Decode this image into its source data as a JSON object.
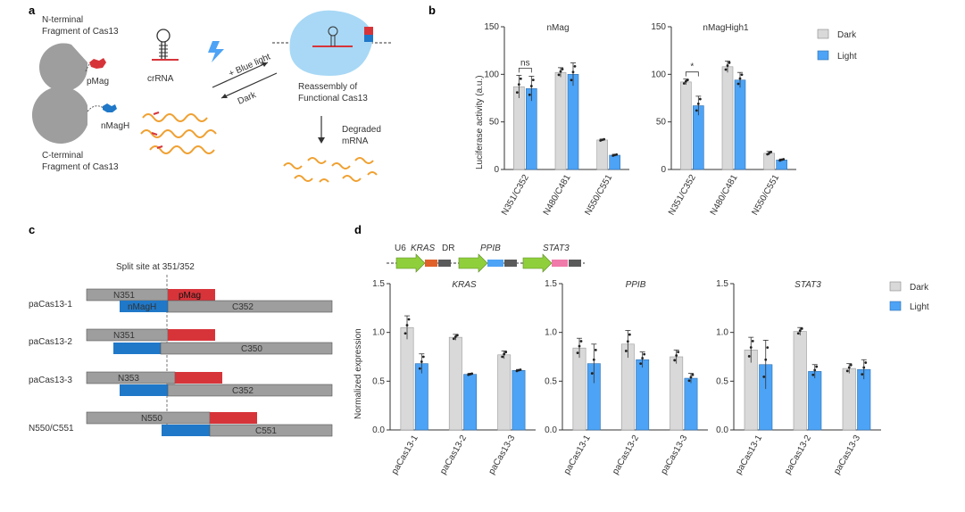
{
  "colors": {
    "dark": "#d9d9d9",
    "light": "#4da3f5",
    "red": "#d7343a",
    "blue": "#1f78c8",
    "grey": "#9e9e9e",
    "orange": "#f0a030",
    "green": "#8fcf3c",
    "pink": "#f07aa9",
    "cas": "#a8d8f5",
    "dkgrey": "#5a5a5a"
  },
  "panel_a": {
    "label": "a",
    "n_terminal_line1": "N-terminal",
    "n_terminal_line2": "Fragment of Cas13",
    "c_terminal_line1": "C-terminal",
    "c_terminal_line2": "Fragment of Cas13",
    "pmag": "pMag",
    "nmagh": "nMagH",
    "crrna": "crRNA",
    "blue_light": "+ Blue light",
    "dark": "Dark",
    "reassembly_line1": "Reassembly of",
    "reassembly_line2": "Functional Cas13",
    "degraded_line1": "Degraded",
    "degraded_line2": "mRNA"
  },
  "panel_b": {
    "label": "b",
    "legend": [
      "Dark",
      "Light"
    ],
    "ylabel": "Luciferase activity (a.u.)"
  },
  "panel_c": {
    "label": "c",
    "split_site": "Split site at 351/352",
    "constructs": [
      {
        "name": "paCas13-1",
        "n": "N351",
        "c": "C352",
        "n_tag": "pMag",
        "c_tag": "nMagH"
      },
      {
        "name": "paCas13-2",
        "n": "N351",
        "c": "C350",
        "n_tag": "",
        "c_tag": ""
      },
      {
        "name": "paCas13-3",
        "n": "N353",
        "c": "C352",
        "n_tag": "",
        "c_tag": ""
      },
      {
        "name": "N550/C551",
        "n": "N550",
        "c": "C551",
        "n_tag": "",
        "c_tag": ""
      }
    ]
  },
  "panel_d": {
    "label": "d",
    "u6": "U6",
    "kras": "KRAS",
    "dr": "DR",
    "ppib": "PPIB",
    "stat3": "STAT3",
    "legend": [
      "Dark",
      "Light"
    ],
    "ylabel": "Normalized expression"
  },
  "chart_data": [
    {
      "type": "bar",
      "title": "nMag",
      "categories": [
        "N351/C352",
        "N480/C481",
        "N550/C551"
      ],
      "series": [
        {
          "name": "Dark",
          "values": [
            87,
            102,
            31
          ]
        },
        {
          "name": "Light",
          "values": [
            85,
            100,
            15
          ]
        }
      ],
      "errors": [
        [
          12,
          5,
          1
        ],
        [
          13,
          12,
          1
        ]
      ],
      "ylim": [
        0,
        150
      ],
      "yticks": [
        "0",
        "50",
        "100",
        "150"
      ],
      "annotations": [
        "ns"
      ]
    },
    {
      "type": "bar",
      "title": "nMagHigh1",
      "categories": [
        "N351/C352",
        "N480/C481",
        "N550/C551"
      ],
      "series": [
        {
          "name": "Dark",
          "values": [
            92,
            108,
            17
          ]
        },
        {
          "name": "Light",
          "values": [
            67,
            94,
            10
          ]
        }
      ],
      "errors": [
        [
          3,
          6,
          2
        ],
        [
          10,
          8,
          1
        ]
      ],
      "ylim": [
        0,
        150
      ],
      "yticks": [
        "0",
        "50",
        "100",
        "150"
      ],
      "annotations": [
        "*"
      ]
    },
    {
      "type": "bar",
      "title": "KRAS",
      "categories": [
        "paCas13-1",
        "paCas13-2",
        "paCas13-3"
      ],
      "series": [
        {
          "name": "Dark",
          "values": [
            1.05,
            0.95,
            0.77
          ]
        },
        {
          "name": "Light",
          "values": [
            0.68,
            0.57,
            0.61
          ]
        }
      ],
      "errors": [
        [
          0.12,
          0.03,
          0.04
        ],
        [
          0.1,
          0.01,
          0.01
        ]
      ],
      "ylim": [
        0,
        1.5
      ],
      "yticks": [
        "0.0",
        "0.5",
        "1.0",
        "1.5"
      ]
    },
    {
      "type": "bar",
      "title": "PPIB",
      "categories": [
        "paCas13-1",
        "paCas13-2",
        "paCas13-3"
      ],
      "series": [
        {
          "name": "Dark",
          "values": [
            0.84,
            0.88,
            0.75
          ]
        },
        {
          "name": "Light",
          "values": [
            0.68,
            0.72,
            0.53
          ]
        }
      ],
      "errors": [
        [
          0.1,
          0.14,
          0.07
        ],
        [
          0.2,
          0.08,
          0.05
        ]
      ],
      "ylim": [
        0,
        1.5
      ],
      "yticks": [
        "0.0",
        "0.5",
        "1.0",
        "1.5"
      ]
    },
    {
      "type": "bar",
      "title": "STAT3",
      "categories": [
        "paCas13-1",
        "paCas13-2",
        "paCas13-3"
      ],
      "series": [
        {
          "name": "Dark",
          "values": [
            0.82,
            1.01,
            0.63
          ]
        },
        {
          "name": "Light",
          "values": [
            0.67,
            0.6,
            0.62
          ]
        }
      ],
      "errors": [
        [
          0.13,
          0.04,
          0.05
        ],
        [
          0.25,
          0.07,
          0.1
        ]
      ],
      "ylim": [
        0,
        1.5
      ],
      "yticks": [
        "0.0",
        "0.5",
        "1.0",
        "1.5"
      ]
    }
  ]
}
